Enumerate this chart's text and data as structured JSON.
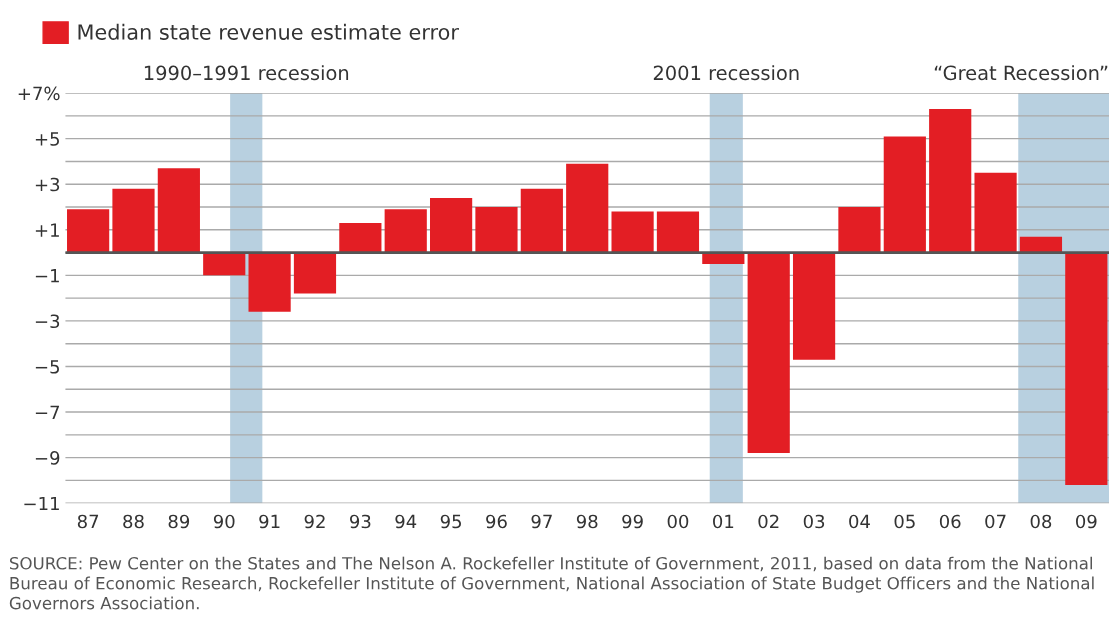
{
  "chart_data": {
    "type": "bar",
    "x": [
      1987,
      1988,
      1989,
      1990,
      1991,
      1992,
      1993,
      1994,
      1995,
      1996,
      1997,
      1998,
      1999,
      2000,
      2001,
      2002,
      2003,
      2004,
      2005,
      2006,
      2007,
      2008,
      2009
    ],
    "series": [
      {
        "name": "Median state revenue estimate error",
        "color": "#e31e24",
        "values": [
          1.9,
          2.8,
          3.7,
          -1.0,
          -2.6,
          -1.8,
          1.3,
          1.9,
          2.4,
          2.0,
          2.8,
          3.9,
          1.8,
          1.8,
          -0.5,
          -8.8,
          -4.7,
          2.0,
          5.1,
          6.3,
          3.5,
          0.7,
          -10.2
        ]
      }
    ],
    "xlim": [
      1986.5,
      2009.5
    ],
    "xticks": [
      {
        "value": 1987,
        "label": "87"
      },
      {
        "value": 1988,
        "label": "88"
      },
      {
        "value": 1989,
        "label": "89"
      },
      {
        "value": 1990,
        "label": "90"
      },
      {
        "value": 1991,
        "label": "91"
      },
      {
        "value": 1992,
        "label": "92"
      },
      {
        "value": 1993,
        "label": "93"
      },
      {
        "value": 1994,
        "label": "94"
      },
      {
        "value": 1995,
        "label": "95"
      },
      {
        "value": 1996,
        "label": "96"
      },
      {
        "value": 1997,
        "label": "97"
      },
      {
        "value": 1998,
        "label": "98"
      },
      {
        "value": 1999,
        "label": "99"
      },
      {
        "value": 2000,
        "label": "00"
      },
      {
        "value": 2001,
        "label": "01"
      },
      {
        "value": 2002,
        "label": "02"
      },
      {
        "value": 2003,
        "label": "03"
      },
      {
        "value": 2004,
        "label": "04"
      },
      {
        "value": 2005,
        "label": "05"
      },
      {
        "value": 2006,
        "label": "06"
      },
      {
        "value": 2007,
        "label": "07"
      },
      {
        "value": 2008,
        "label": "08"
      },
      {
        "value": 2009,
        "label": "09"
      }
    ],
    "ylim": [
      -11,
      7
    ],
    "yticks": [
      {
        "value": 7,
        "label": "+7%"
      },
      {
        "value": 6,
        "label": null
      },
      {
        "value": 5,
        "label": "+5"
      },
      {
        "value": 4,
        "label": null
      },
      {
        "value": 3,
        "label": "+3"
      },
      {
        "value": 2,
        "label": null
      },
      {
        "value": 1,
        "label": "+1"
      },
      {
        "value": 0,
        "label": null
      },
      {
        "value": -1,
        "label": "−1"
      },
      {
        "value": -2,
        "label": null
      },
      {
        "value": -3,
        "label": "−3"
      },
      {
        "value": -4,
        "label": null
      },
      {
        "value": -5,
        "label": "−5"
      },
      {
        "value": -6,
        "label": null
      },
      {
        "value": -7,
        "label": "−7"
      },
      {
        "value": -8,
        "label": null
      },
      {
        "value": -9,
        "label": "−9"
      },
      {
        "value": -10,
        "label": null
      },
      {
        "value": -11,
        "label": "−11"
      }
    ],
    "grid": "y",
    "legend": "top left",
    "ref_lines": [
      {
        "axis": "y",
        "value": 0,
        "color": "#555555"
      }
    ],
    "bands": [
      {
        "axis": "x",
        "from": 1990.13,
        "to": 1990.84,
        "label": "1990–1991 recession",
        "color": "#b8d0e0"
      },
      {
        "axis": "x",
        "from": 2000.7,
        "to": 2001.43,
        "label": "2001 recession",
        "color": "#b8d0e0"
      },
      {
        "axis": "x",
        "from": 2007.5,
        "to": 2009.5,
        "label": "“Great Recession”",
        "color": "#b8d0e0"
      }
    ],
    "annotations": [
      "SOURCE: Pew Center on the States and The Nelson A. Rockefeller Institute of Government, 2011, based on data from the National Bureau of Economic Research, Rockefeller Institute of Government, National Association of State Budget Officers and the National Governors Association."
    ]
  }
}
